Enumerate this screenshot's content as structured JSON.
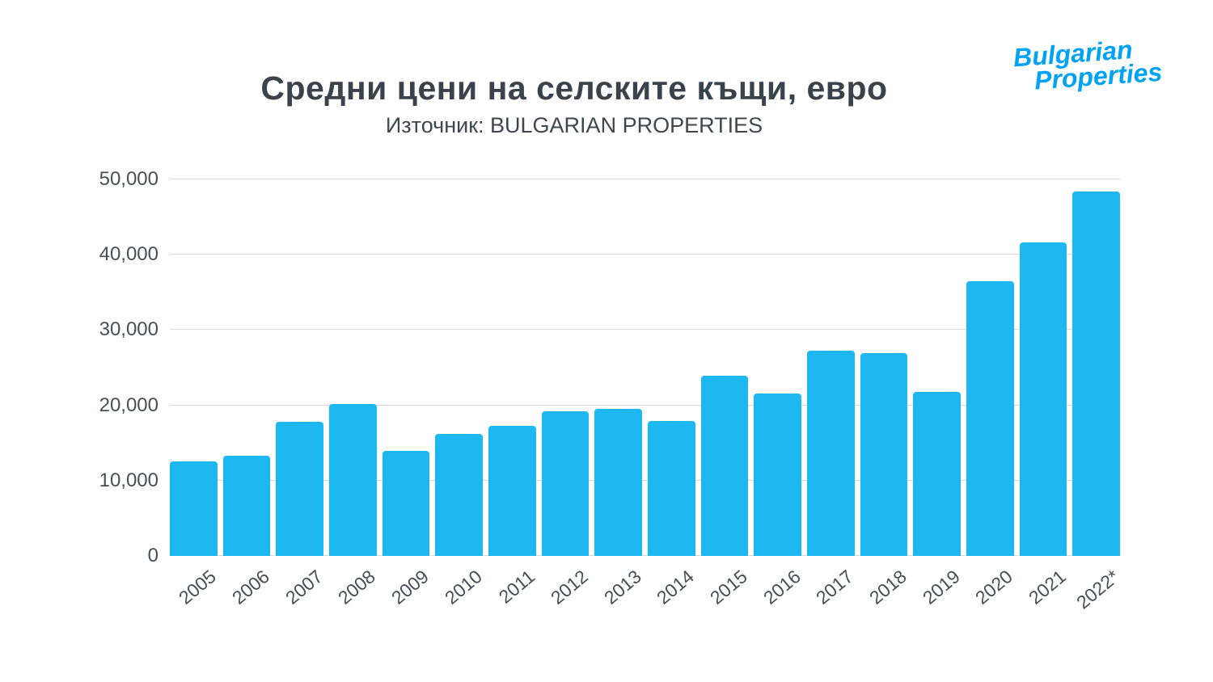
{
  "page": {
    "title": "Средни цени на селските къщи, евро",
    "subtitle": "Източник: BULGARIAN PROPERTIES"
  },
  "logo": {
    "line1": "Bulgarian",
    "line2": "Properties",
    "color": "#00a2f4"
  },
  "chart_data": {
    "type": "bar",
    "title": "Средни цени на селските къщи, евро",
    "subtitle": "Източник: BULGARIAN PROPERTIES",
    "categories": [
      "2005",
      "2006",
      "2007",
      "2008",
      "2009",
      "2010",
      "2011",
      "2012",
      "2013",
      "2014",
      "2015",
      "2016",
      "2017",
      "2018",
      "2019",
      "2020",
      "2021",
      "2022*"
    ],
    "values": [
      12600,
      13300,
      17800,
      20200,
      13900,
      16200,
      17300,
      19200,
      19500,
      17900,
      23900,
      21600,
      27300,
      26900,
      21800,
      36500,
      41600,
      48400
    ],
    "xlabel": "",
    "ylabel": "",
    "ylim": [
      0,
      50000
    ],
    "yticks": [
      0,
      10000,
      20000,
      30000,
      40000,
      50000
    ],
    "ytick_labels": [
      "0",
      "10,000",
      "20,000",
      "30,000",
      "40,000",
      "50,000"
    ],
    "bar_color": "#1db8f2",
    "grid": true,
    "legend": false
  }
}
